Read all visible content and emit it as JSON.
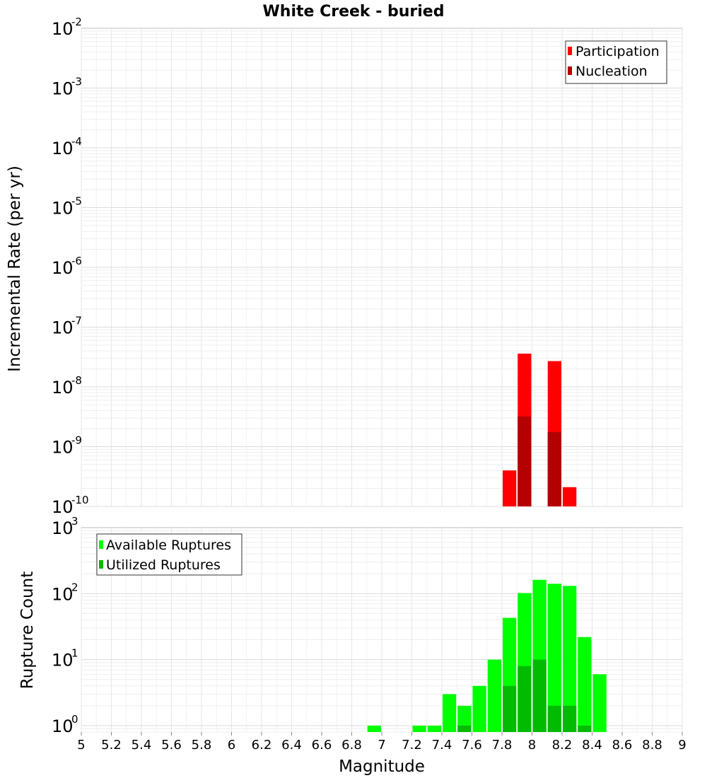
{
  "chart_data": [
    {
      "type": "bar",
      "title": "White Creek - buried",
      "ylabel": "Incremental Rate (per yr)",
      "xlabel": "",
      "yscale": "log",
      "ylim": [
        1e-10,
        0.01
      ],
      "xlim": [
        5,
        9
      ],
      "bin_width": 0.1,
      "legend_position": "top-right",
      "series": [
        {
          "name": "Participation",
          "color": "#ff0000",
          "x": [
            7.85,
            7.95,
            8.15,
            8.25
          ],
          "values": [
            4e-10,
            3.6e-08,
            2.7e-08,
            2.1e-10
          ]
        },
        {
          "name": "Nucleation",
          "color": "#b40000",
          "x": [
            7.95,
            8.15
          ],
          "values": [
            3.2e-09,
            1.75e-09
          ]
        }
      ],
      "y_ticks": [
        {
          "base": "10",
          "exp": "-2"
        },
        {
          "base": "10",
          "exp": "-3"
        },
        {
          "base": "10",
          "exp": "-4"
        },
        {
          "base": "10",
          "exp": "-5"
        },
        {
          "base": "10",
          "exp": "-6"
        },
        {
          "base": "10",
          "exp": "-7"
        },
        {
          "base": "10",
          "exp": "-8"
        },
        {
          "base": "10",
          "exp": "-9"
        },
        {
          "base": "10",
          "exp": "-10"
        }
      ]
    },
    {
      "type": "bar",
      "title": "",
      "ylabel": "Rupture Count",
      "xlabel": "Magnitude",
      "yscale": "log",
      "ylim": [
        0.8,
        1000
      ],
      "xlim": [
        5,
        9
      ],
      "bin_width": 0.1,
      "legend_position": "top-left",
      "series": [
        {
          "name": "Available Ruptures",
          "color": "#00ff00",
          "x": [
            6.95,
            7.25,
            7.35,
            7.45,
            7.55,
            7.65,
            7.75,
            7.85,
            7.95,
            8.05,
            8.15,
            8.25,
            8.35,
            8.45
          ],
          "values": [
            1,
            1,
            1,
            3,
            2,
            4,
            10,
            43,
            102,
            162,
            141,
            131,
            22,
            6
          ]
        },
        {
          "name": "Utilized Ruptures",
          "color": "#00bb00",
          "x": [
            7.55,
            7.85,
            7.95,
            8.05,
            8.15,
            8.25,
            8.35
          ],
          "values": [
            1,
            4,
            8,
            10,
            2,
            2,
            1
          ]
        }
      ],
      "x_ticks": [
        "5",
        "5.2",
        "5.4",
        "5.6",
        "5.8",
        "6",
        "6.2",
        "6.4",
        "6.6",
        "6.8",
        "7",
        "7.2",
        "7.4",
        "7.6",
        "7.8",
        "8",
        "8.2",
        "8.4",
        "8.6",
        "8.8",
        "9"
      ],
      "y_ticks": [
        {
          "base": "10",
          "exp": "3"
        },
        {
          "base": "10",
          "exp": "2"
        },
        {
          "base": "10",
          "exp": "1"
        },
        {
          "base": "10",
          "exp": "0"
        }
      ]
    }
  ]
}
